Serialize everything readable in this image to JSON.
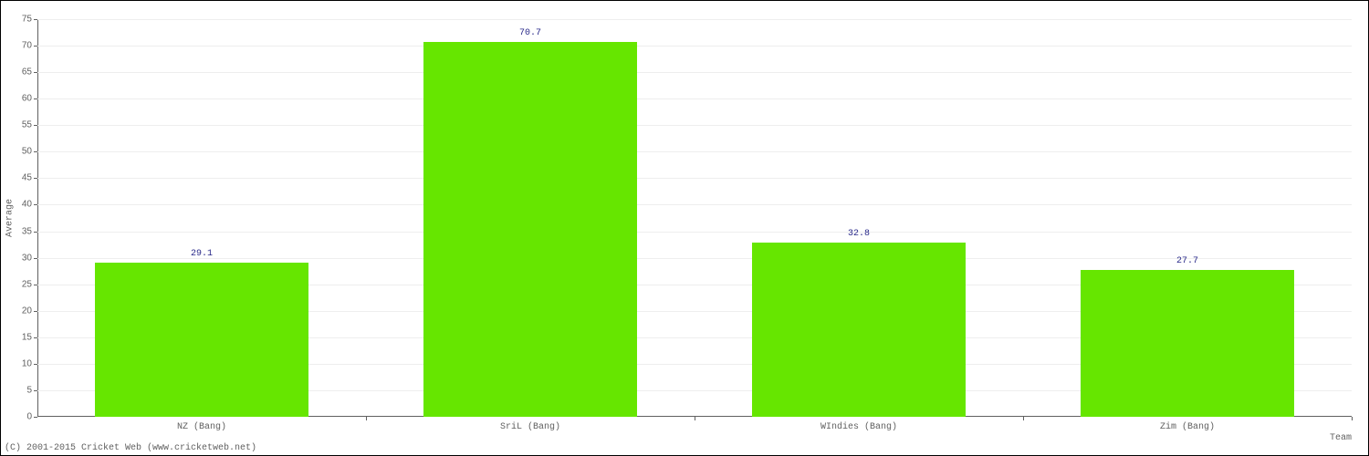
{
  "chart": {
    "type": "bar",
    "categories": [
      "NZ (Bang)",
      "SriL (Bang)",
      "WIndies (Bang)",
      "Zim (Bang)"
    ],
    "values": [
      29.1,
      70.7,
      32.8,
      27.7
    ],
    "value_labels": [
      "29.1",
      "70.7",
      "32.8",
      "27.7"
    ],
    "bar_color": "#66e600",
    "value_label_color": "#2a2a8a",
    "ylabel": "Average",
    "xlabel": "Team",
    "ylim": [
      0,
      75
    ],
    "ytick_step": 5,
    "yticks": [
      0,
      5,
      10,
      15,
      20,
      25,
      30,
      35,
      40,
      45,
      50,
      55,
      60,
      65,
      70,
      75
    ],
    "grid_color": "#eeeeee",
    "axis_color": "#606060",
    "background_color": "#ffffff",
    "tick_fontsize": 10,
    "label_fontsize": 10,
    "bar_width_ratio": 0.65,
    "tick_font": "monospace"
  },
  "copyright": "(C) 2001-2015 Cricket Web (www.cricketweb.net)"
}
